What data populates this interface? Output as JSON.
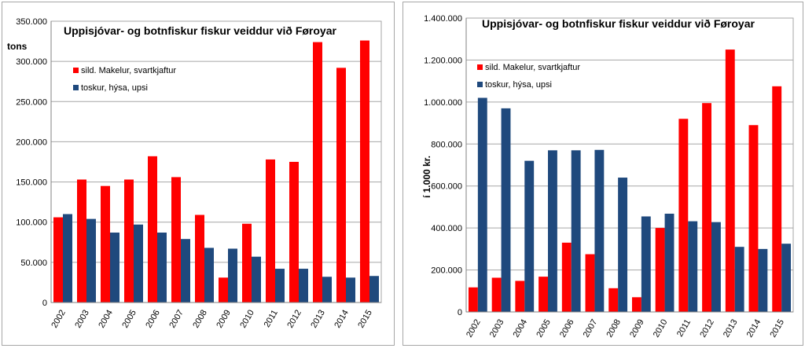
{
  "colors": {
    "series_a": "#ff0000",
    "series_b": "#1f497d",
    "grid": "#a6a6a6",
    "axis": "#808080"
  },
  "chart_data": [
    {
      "type": "bar",
      "title": "Uppisjóvar- og botnfiskur fiskur veiddur við Føroyar",
      "ylabel": "tons",
      "xlabel": "",
      "ylim": [
        0,
        350000
      ],
      "ytick_labels": [
        "0",
        "50.000",
        "100.000",
        "150.000",
        "200.000",
        "250.000",
        "300.000",
        "350.000"
      ],
      "categories": [
        "2002",
        "2003",
        "2004",
        "2005",
        "2006",
        "2007",
        "2008",
        "2009",
        "2010",
        "2011",
        "2012",
        "2013",
        "2014",
        "2015"
      ],
      "series": [
        {
          "name": "sild. Makelur, svartkjaftur",
          "values": [
            106000,
            153000,
            145000,
            153000,
            182000,
            156000,
            109000,
            31000,
            98000,
            178000,
            175000,
            324000,
            292000,
            326000
          ]
        },
        {
          "name": "toskur, hýsa, upsi",
          "values": [
            110000,
            104000,
            87000,
            97000,
            87000,
            79000,
            68000,
            67000,
            57000,
            42000,
            42000,
            32000,
            31000,
            33000
          ]
        }
      ],
      "grid": true,
      "legend_position": "top-left"
    },
    {
      "type": "bar",
      "title": "Uppisjóvar- og botnfiskur fiskur veiddur við Føroyar",
      "ylabel": "í 1.000 kr.",
      "xlabel": "",
      "ylim": [
        0,
        1400000
      ],
      "ytick_labels": [
        "0",
        "200.000",
        "400.000",
        "600.000",
        "800.000",
        "1.000.000",
        "1.200.000",
        "1.400.000"
      ],
      "categories": [
        "2002",
        "2003",
        "2004",
        "2005",
        "2006",
        "2007",
        "2008",
        "2009",
        "2010",
        "2011",
        "2012",
        "2013",
        "2014",
        "2015"
      ],
      "series": [
        {
          "name": "sild. Makelur, svartkjaftur",
          "values": [
            117000,
            163000,
            148000,
            168000,
            330000,
            275000,
            113000,
            70000,
            400000,
            920000,
            995000,
            1250000,
            890000,
            1075000
          ]
        },
        {
          "name": "toskur, hýsa, upsi",
          "values": [
            1020000,
            970000,
            720000,
            770000,
            770000,
            772000,
            640000,
            455000,
            468000,
            432000,
            428000,
            310000,
            300000,
            325000
          ]
        }
      ],
      "grid": true,
      "legend_position": "top-left"
    }
  ]
}
